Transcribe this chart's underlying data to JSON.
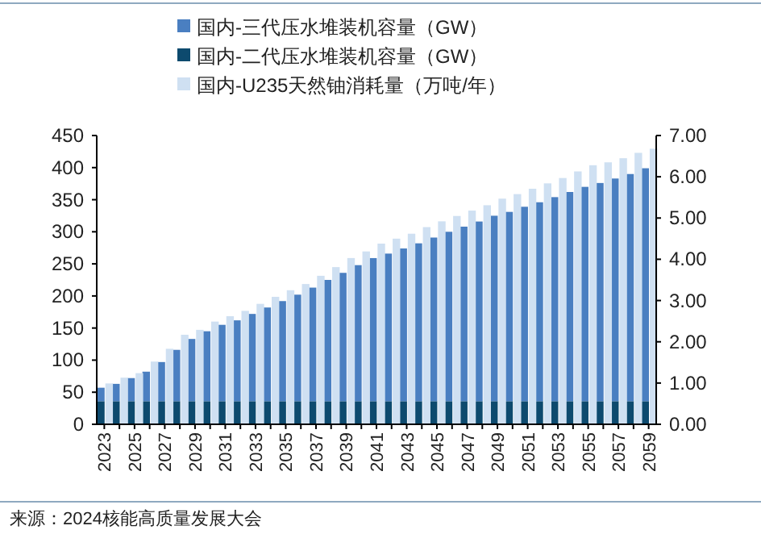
{
  "chart_data": {
    "type": "bar",
    "stacked": true,
    "legend": "top",
    "grid": false,
    "categories": [
      "2023",
      null,
      "2025",
      null,
      "2027",
      null,
      "2029",
      null,
      "2031",
      null,
      "2033",
      null,
      "2035",
      null,
      "2037",
      null,
      "2039",
      null,
      "2041",
      null,
      "2043",
      null,
      "2045",
      null,
      "2047",
      null,
      "2049",
      null,
      "2051",
      null,
      "2053",
      null,
      "2055",
      null,
      "2057",
      null,
      "2059"
    ],
    "series": [
      {
        "name": "国内-二代压水堆装机容量（GW）",
        "color": "#0d4a6e",
        "values": [
          36,
          36,
          36,
          36,
          36,
          36,
          36,
          36,
          36,
          36,
          36,
          36,
          36,
          36,
          36,
          36,
          36,
          36,
          36,
          36,
          36,
          36,
          36,
          36,
          36,
          36,
          36,
          36,
          36,
          36,
          36,
          36,
          36,
          36,
          36,
          36,
          36
        ]
      },
      {
        "name": "国内-三代压水堆装机容量（GW）",
        "color": "#4a7fc1",
        "values": [
          21,
          27,
          36,
          46,
          61,
          80,
          97,
          109,
          119,
          126,
          136,
          146,
          156,
          166,
          177,
          189,
          200,
          212,
          223,
          230,
          238,
          246,
          255,
          264,
          272,
          280,
          289,
          295,
          303,
          310,
          318,
          326,
          334,
          340,
          347,
          354,
          363
        ]
      },
      {
        "name": "国内-U235天然铀消耗量（万吨/年）",
        "color": "#cfe0f2",
        "axis": "y2",
        "values": [
          0.99,
          1.13,
          1.24,
          1.52,
          1.83,
          2.17,
          2.29,
          2.49,
          2.62,
          2.75,
          2.92,
          3.09,
          3.25,
          3.4,
          3.6,
          3.81,
          4.03,
          4.19,
          4.38,
          4.5,
          4.62,
          4.78,
          4.92,
          5.05,
          5.18,
          5.31,
          5.47,
          5.58,
          5.71,
          5.84,
          5.97,
          6.13,
          6.28,
          6.35,
          6.45,
          6.58,
          6.68
        ]
      }
    ],
    "ylim": [
      0,
      450
    ],
    "yticks": [
      0,
      50,
      100,
      150,
      200,
      250,
      300,
      350,
      400,
      450
    ],
    "y2lim": [
      0,
      7
    ],
    "y2ticks": [
      {
        "value": 0,
        "label": "0.00"
      },
      {
        "value": 1,
        "label": "1.00"
      },
      {
        "value": 2,
        "label": "2.00"
      },
      {
        "value": 3,
        "label": "3.00"
      },
      {
        "value": 4,
        "label": "4.00"
      },
      {
        "value": 5,
        "label": "5.00"
      },
      {
        "value": 6,
        "label": "6.00"
      },
      {
        "value": 7,
        "label": "7.00"
      }
    ],
    "annotations": [
      "来源：2024核能高质量发展大会"
    ]
  }
}
